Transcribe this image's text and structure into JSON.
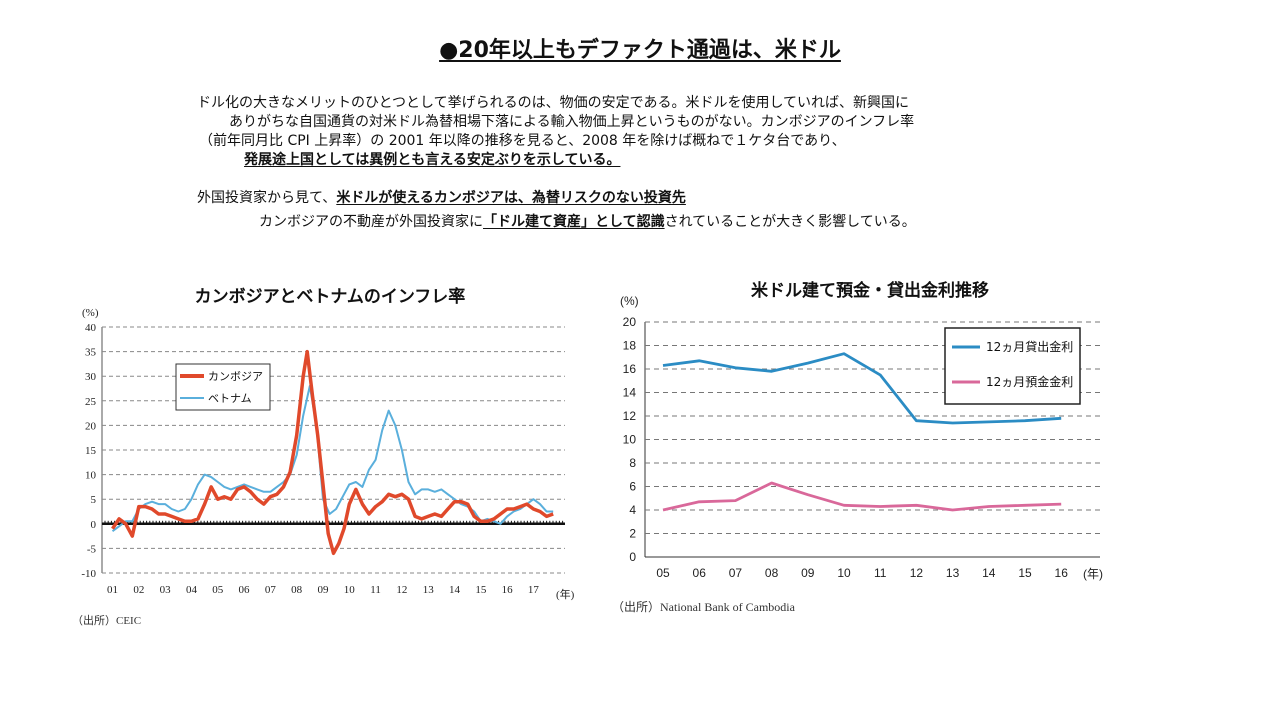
{
  "slide": {
    "title": "●20年以上もデファクト通過は、米ドル",
    "paragraph1": {
      "line1": "ドル化の大きなメリットのひとつとして挙げられるのは、物価の安定である。米ドルを使用していれば、新興国に",
      "line2": "ありがちな自国通貨の対米ドル為替相場下落による輸入物価上昇というものがない。カンボジアのインフレ率",
      "line3": "（前年同月比 CPI 上昇率）の 2001 年以降の推移を見ると、2008 年を除けば概ねで１ケタ台であり、",
      "line4": "発展途上国としては異例とも言える安定ぶりを示している。"
    },
    "paragraph2": {
      "line1_prefix": "外国投資家から見て、",
      "line1_emphasis": "米ドルが使えるカンボジアは、為替リスクのない投資先",
      "line2_prefix": "カンボジアの不動産が外国投資家に",
      "line2_emphasis": "「ドル建て資産」として認識",
      "line2_suffix": "されていることが大きく影響している。"
    }
  },
  "chart_data": [
    {
      "type": "line",
      "title": "カンボジアとベトナムのインフレ率",
      "ylabel": "(%)",
      "xlabel": "(年)",
      "ylim": [
        -10,
        40
      ],
      "yticks": [
        "40",
        "35",
        "30",
        "25",
        "20",
        "15",
        "10",
        "5",
        "0",
        "-5",
        "-10"
      ],
      "categories": [
        "01",
        "02",
        "03",
        "04",
        "05",
        "06",
        "07",
        "08",
        "09",
        "10",
        "11",
        "12",
        "13",
        "14",
        "15",
        "16",
        "17"
      ],
      "grid": "dashed horizontal",
      "legend_position": "upper-left",
      "source": "（出所）CEIC",
      "series": [
        {
          "name": "カンボジア",
          "color": "#e0492b",
          "x": [
            2001.0,
            2001.25,
            2001.5,
            2001.75,
            2002.0,
            2002.25,
            2002.5,
            2002.75,
            2003.0,
            2003.25,
            2003.5,
            2003.75,
            2004.0,
            2004.25,
            2004.5,
            2004.75,
            2005.0,
            2005.25,
            2005.5,
            2005.75,
            2006.0,
            2006.25,
            2006.5,
            2006.75,
            2007.0,
            2007.25,
            2007.5,
            2007.75,
            2008.0,
            2008.25,
            2008.4,
            2008.6,
            2008.8,
            2009.0,
            2009.2,
            2009.4,
            2009.6,
            2009.8,
            2010.0,
            2010.25,
            2010.5,
            2010.75,
            2011.0,
            2011.25,
            2011.5,
            2011.75,
            2012.0,
            2012.25,
            2012.5,
            2012.75,
            2013.0,
            2013.25,
            2013.5,
            2013.75,
            2014.0,
            2014.25,
            2014.5,
            2014.75,
            2015.0,
            2015.25,
            2015.5,
            2015.75,
            2016.0,
            2016.25,
            2016.5,
            2016.75,
            2017.0,
            2017.25,
            2017.5,
            2017.75
          ],
          "values": [
            -1.0,
            1.0,
            0.0,
            -2.5,
            3.5,
            3.5,
            3.0,
            2.0,
            2.0,
            1.5,
            1.0,
            0.5,
            0.5,
            1.0,
            4.0,
            7.5,
            5.0,
            5.5,
            5.0,
            7.0,
            7.5,
            6.5,
            5.0,
            4.0,
            5.5,
            6.0,
            7.5,
            10.5,
            18.0,
            30.0,
            35.0,
            26.0,
            18.0,
            8.0,
            -2.0,
            -6.0,
            -4.0,
            -1.0,
            4.0,
            7.0,
            4.0,
            2.0,
            3.5,
            4.5,
            6.0,
            5.5,
            6.0,
            5.0,
            1.5,
            1.0,
            1.5,
            2.0,
            1.5,
            3.0,
            4.5,
            4.5,
            4.0,
            1.5,
            0.5,
            0.5,
            1.0,
            2.0,
            3.0,
            3.0,
            3.5,
            4.0,
            3.0,
            2.5,
            1.5,
            2.0
          ]
        },
        {
          "name": "ベトナム",
          "color": "#5aafdc",
          "x": [
            2001.0,
            2001.25,
            2001.5,
            2001.75,
            2002.0,
            2002.25,
            2002.5,
            2002.75,
            2003.0,
            2003.25,
            2003.5,
            2003.75,
            2004.0,
            2004.25,
            2004.5,
            2004.75,
            2005.0,
            2005.25,
            2005.5,
            2005.75,
            2006.0,
            2006.25,
            2006.5,
            2006.75,
            2007.0,
            2007.25,
            2007.5,
            2007.75,
            2008.0,
            2008.25,
            2008.5,
            2008.75,
            2009.0,
            2009.25,
            2009.5,
            2009.75,
            2010.0,
            2010.25,
            2010.5,
            2010.75,
            2011.0,
            2011.25,
            2011.5,
            2011.75,
            2012.0,
            2012.25,
            2012.5,
            2012.75,
            2013.0,
            2013.25,
            2013.5,
            2013.75,
            2014.0,
            2014.25,
            2014.5,
            2014.75,
            2015.0,
            2015.25,
            2015.5,
            2015.75,
            2016.0,
            2016.25,
            2016.5,
            2016.75,
            2017.0,
            2017.25,
            2017.5,
            2017.75
          ],
          "values": [
            -1.5,
            -0.5,
            0.5,
            0.5,
            3.0,
            4.0,
            4.5,
            4.0,
            4.0,
            3.0,
            2.5,
            3.0,
            5.0,
            8.0,
            10.0,
            9.5,
            8.5,
            7.5,
            7.0,
            7.5,
            8.0,
            7.5,
            7.0,
            6.5,
            6.5,
            7.5,
            8.5,
            10.0,
            14.0,
            22.0,
            28.0,
            20.0,
            5.0,
            2.0,
            3.0,
            5.5,
            8.0,
            8.5,
            7.5,
            11.0,
            13.0,
            19.0,
            23.0,
            20.0,
            15.0,
            8.5,
            6.0,
            7.0,
            7.0,
            6.5,
            7.0,
            6.0,
            5.0,
            4.0,
            3.5,
            2.5,
            0.5,
            1.0,
            0.5,
            0.0,
            1.5,
            2.5,
            3.0,
            4.0,
            5.0,
            4.0,
            2.5,
            2.5
          ]
        }
      ]
    },
    {
      "type": "line",
      "title": "米ドル建て預金・貸出金利推移",
      "ylabel": "(%)",
      "xlabel": "(年)",
      "ylim": [
        0,
        20
      ],
      "yticks": [
        "20",
        "18",
        "16",
        "14",
        "12",
        "10",
        "8",
        "6",
        "4",
        "2",
        "0"
      ],
      "categories": [
        "05",
        "06",
        "07",
        "08",
        "09",
        "10",
        "11",
        "12",
        "13",
        "14",
        "15",
        "16"
      ],
      "grid": "dashed horizontal",
      "legend_position": "upper-right",
      "source": "（出所）National Bank of Cambodia",
      "series": [
        {
          "name": "12ヵ月貸出金利",
          "color": "#2b8cc4",
          "values": [
            16.3,
            16.7,
            16.1,
            15.8,
            16.5,
            17.3,
            15.5,
            11.6,
            11.4,
            11.5,
            11.6,
            11.8
          ]
        },
        {
          "name": "12ヵ月預金金利",
          "color": "#d9689a",
          "values": [
            4.0,
            4.7,
            4.8,
            6.3,
            5.3,
            4.4,
            4.3,
            4.4,
            4.0,
            4.3,
            4.4,
            4.5
          ]
        }
      ]
    }
  ]
}
